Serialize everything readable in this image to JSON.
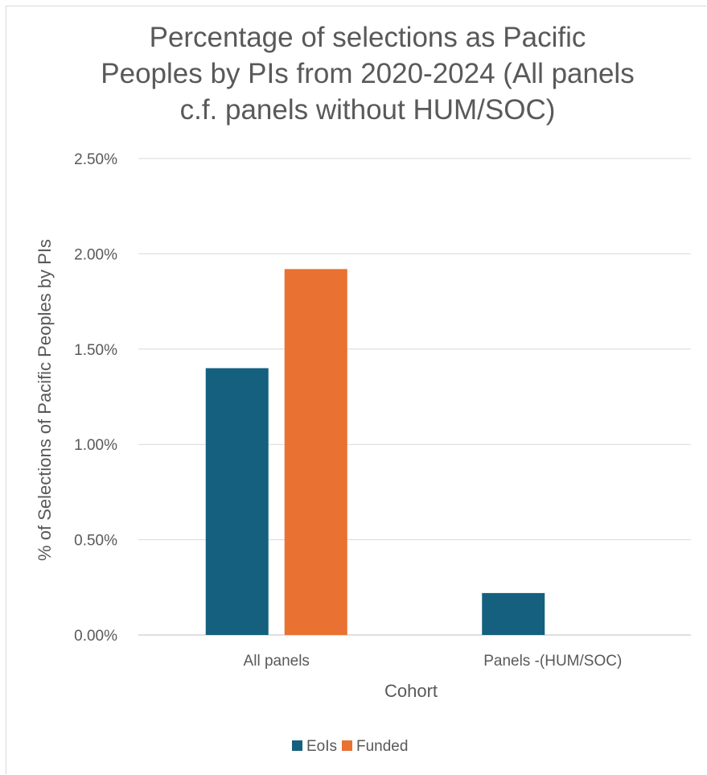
{
  "chart_data": {
    "type": "bar",
    "title_lines": [
      "Percentage of selections as Pacific",
      "Peoples by PIs from 2020-2024 (All panels",
      "c.f. panels without HUM/SOC)"
    ],
    "xlabel": "Cohort",
    "ylabel": "% of Selections of Pacific Peoples by PIs",
    "categories": [
      "All panels",
      "Panels -(HUM/SOC)"
    ],
    "series": [
      {
        "name": "EoIs",
        "color": "#15607f",
        "values": [
          1.4,
          0.22
        ]
      },
      {
        "name": "Funded",
        "color": "#e97132",
        "values": [
          1.92,
          0.0
        ]
      }
    ],
    "ylim": [
      0,
      2.5
    ],
    "yticks": [
      0,
      0.5,
      1.0,
      1.5,
      2.0,
      2.5
    ],
    "ytick_labels": [
      "0.00%",
      "0.50%",
      "1.00%",
      "1.50%",
      "2.00%",
      "2.50%"
    ],
    "grid": true,
    "legend_position": "bottom"
  }
}
